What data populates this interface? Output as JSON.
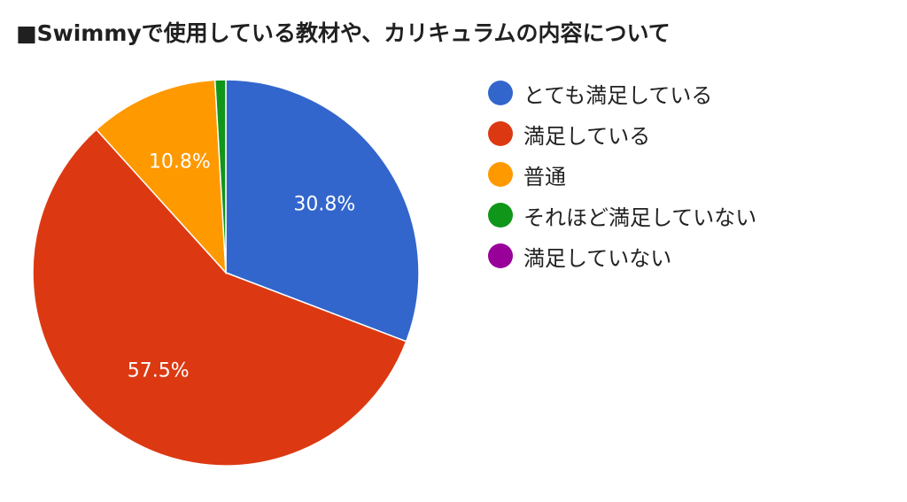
{
  "chart_data": {
    "type": "pie",
    "title": "■Swimmyで使用している教材や、カリキュラムの内容について",
    "legend_position": "right",
    "slices": [
      {
        "label": "とても満足している",
        "value": 30.8,
        "display": "30.8%",
        "color": "#3366cc"
      },
      {
        "label": "満足している",
        "value": 57.5,
        "display": "57.5%",
        "color": "#dc3912"
      },
      {
        "label": "普通",
        "value": 10.8,
        "display": "10.8%",
        "color": "#ff9900"
      },
      {
        "label": "それほど満足していない",
        "value": 0.9,
        "display": "",
        "color": "#109618"
      },
      {
        "label": "満足していない",
        "value": 0.0,
        "display": "",
        "color": "#990099"
      }
    ]
  }
}
